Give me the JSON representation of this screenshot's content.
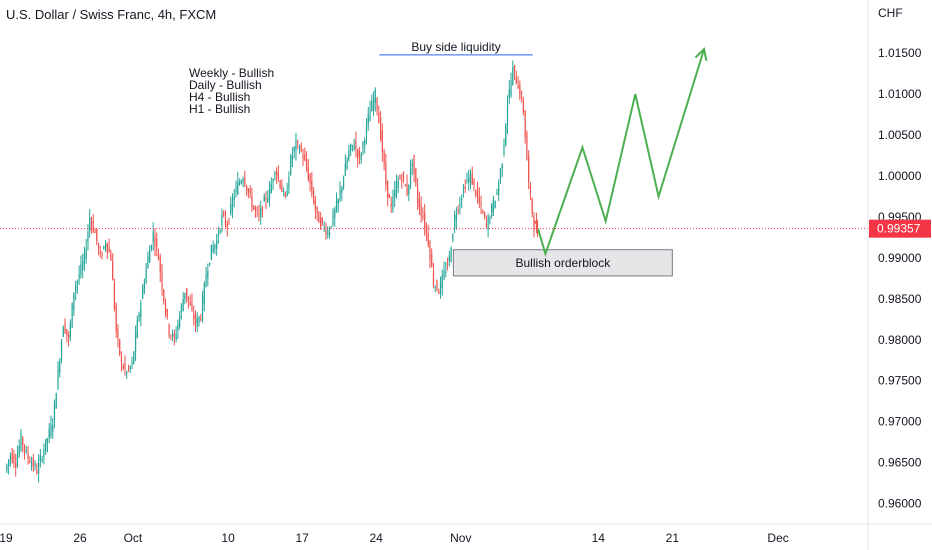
{
  "chart_data": {
    "type": "candlestick",
    "title": "U.S. Dollar / Swiss Franc, 4h, FXCM",
    "currency": "CHF",
    "y_axis_position": "right",
    "ylim": [
      0.9575,
      1.0215
    ],
    "y_ticks": [
      "0.96000",
      "0.96500",
      "0.97000",
      "0.97500",
      "0.98000",
      "0.98500",
      "0.99000",
      "0.99500",
      "1.00000",
      "1.00500",
      "1.01000",
      "1.01500"
    ],
    "x_ticks": [
      {
        "label": "19",
        "day": 0
      },
      {
        "label": "26",
        "day": 7
      },
      {
        "label": "Oct",
        "day": 12
      },
      {
        "label": "10",
        "day": 21
      },
      {
        "label": "17",
        "day": 28
      },
      {
        "label": "24",
        "day": 35
      },
      {
        "label": "Nov",
        "day": 43
      },
      {
        "label": "14",
        "day": 56
      },
      {
        "label": "21",
        "day": 63
      },
      {
        "label": "Dec",
        "day": 73
      }
    ],
    "xlim_days": [
      0,
      81.5
    ],
    "last_price": "0.99357",
    "last_price_value": 0.99357,
    "colors": {
      "up": "#26a69a",
      "down": "#ef5350",
      "projection": "#4caf50",
      "last_price": "#f23645",
      "axis_text": "#131722",
      "border": "#e0e3eb"
    },
    "candles_daily_path": [
      [
        0,
        0.964
      ],
      [
        0.5,
        0.966
      ],
      [
        1,
        0.965
      ],
      [
        1.5,
        0.968
      ],
      [
        2,
        0.966
      ],
      [
        2.5,
        0.965
      ],
      [
        3,
        0.964
      ],
      [
        3.5,
        0.966
      ],
      [
        4,
        0.968
      ],
      [
        4.5,
        0.97
      ],
      [
        5,
        0.976
      ],
      [
        5.5,
        0.982
      ],
      [
        6,
        0.98
      ],
      [
        6.5,
        0.986
      ],
      [
        7,
        0.988
      ],
      [
        7.5,
        0.99
      ],
      [
        8,
        0.995
      ],
      [
        8.5,
        0.993
      ],
      [
        9,
        0.99
      ],
      [
        9.5,
        0.992
      ],
      [
        10,
        0.99
      ],
      [
        10.5,
        0.981
      ],
      [
        11,
        0.977
      ],
      [
        11.5,
        0.976
      ],
      [
        12,
        0.977
      ],
      [
        12.5,
        0.982
      ],
      [
        13,
        0.986
      ],
      [
        13.5,
        0.99
      ],
      [
        14,
        0.993
      ],
      [
        14.5,
        0.99
      ],
      [
        15,
        0.985
      ],
      [
        15.5,
        0.981
      ],
      [
        16,
        0.98
      ],
      [
        16.5,
        0.983
      ],
      [
        17,
        0.986
      ],
      [
        17.5,
        0.984
      ],
      [
        18,
        0.982
      ],
      [
        18.5,
        0.983
      ],
      [
        19,
        0.988
      ],
      [
        19.5,
        0.991
      ],
      [
        20,
        0.992
      ],
      [
        20.5,
        0.995
      ],
      [
        21,
        0.994
      ],
      [
        21.5,
        0.997
      ],
      [
        22,
        0.999
      ],
      [
        22.5,
        1.0
      ],
      [
        23,
        0.998
      ],
      [
        23.5,
        0.996
      ],
      [
        24,
        0.995
      ],
      [
        24.5,
        0.997
      ],
      [
        25,
        0.998
      ],
      [
        25.5,
        1.001
      ],
      [
        26,
        0.999
      ],
      [
        26.5,
        0.997
      ],
      [
        27,
        1.002
      ],
      [
        27.5,
        1.004
      ],
      [
        28,
        1.003
      ],
      [
        28.5,
        1.001
      ],
      [
        29,
        0.998
      ],
      [
        29.5,
        0.995
      ],
      [
        30,
        0.994
      ],
      [
        30.5,
        0.993
      ],
      [
        31,
        0.995
      ],
      [
        31.5,
        0.997
      ],
      [
        32,
        1.0
      ],
      [
        32.5,
        1.003
      ],
      [
        33,
        1.004
      ],
      [
        33.5,
        1.002
      ],
      [
        34,
        1.005
      ],
      [
        34.5,
        1.008
      ],
      [
        35,
        1.01
      ],
      [
        35.5,
        1.005
      ],
      [
        36,
        0.999
      ],
      [
        36.5,
        0.996
      ],
      [
        37,
        0.999
      ],
      [
        37.5,
        1.0
      ],
      [
        38,
        0.998
      ],
      [
        38.5,
        1.002
      ],
      [
        39,
        0.997
      ],
      [
        39.5,
        0.995
      ],
      [
        40,
        0.992
      ],
      [
        40.5,
        0.987
      ],
      [
        41,
        0.986
      ],
      [
        41.5,
        0.988
      ],
      [
        42,
        0.99
      ],
      [
        42.5,
        0.995
      ],
      [
        43,
        0.997
      ],
      [
        43.5,
        0.999
      ],
      [
        44,
        1.0
      ],
      [
        44.5,
        0.998
      ],
      [
        45,
        0.996
      ],
      [
        45.5,
        0.994
      ],
      [
        46,
        0.996
      ],
      [
        46.5,
        0.998
      ],
      [
        47,
        1.002
      ],
      [
        47.5,
        1.009
      ],
      [
        48,
        1.013
      ],
      [
        48.5,
        1.011
      ],
      [
        49,
        1.008
      ],
      [
        49.5,
        0.999
      ],
      [
        50,
        0.994
      ],
      [
        50.3,
        0.9935
      ]
    ],
    "projection": [
      [
        50.3,
        0.99357
      ],
      [
        51,
        0.9905
      ],
      [
        54.5,
        1.0035
      ],
      [
        56.7,
        0.9945
      ],
      [
        59.5,
        1.01
      ],
      [
        61.7,
        0.9975
      ],
      [
        66,
        1.0155
      ]
    ],
    "annotations": {
      "trend_lines": [
        "Weekly - Bullish",
        "Daily - Bullish",
        "H4 - Bullish",
        "H1 - Bullish"
      ],
      "liquidity_label": "Buy side liquidity",
      "liquidity_level": 1.0148,
      "liquidity_range_days": [
        35.3,
        49.8
      ],
      "orderblock_label": "Bullish orderblock",
      "orderblock_range": [
        0.9878,
        0.991
      ],
      "orderblock_days": [
        42.3,
        63.0
      ]
    }
  }
}
